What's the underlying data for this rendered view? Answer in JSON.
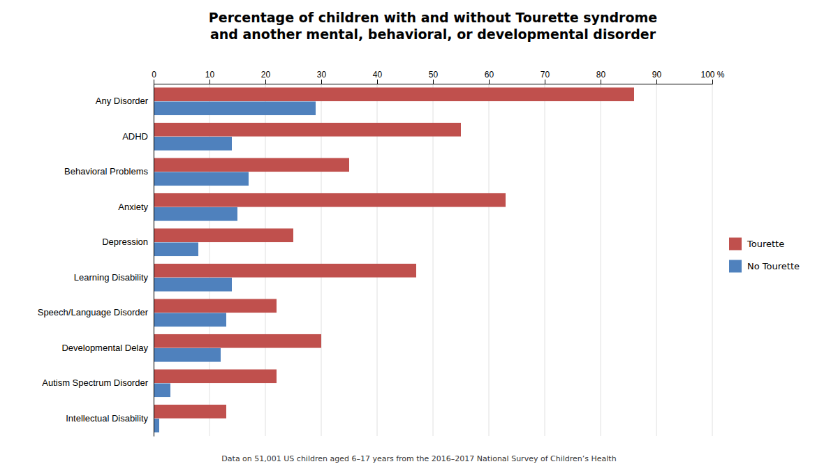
{
  "chart_data": {
    "type": "bar",
    "orientation": "horizontal",
    "title": "Percentage of children with and without Tourette syndrome\nand another mental, behavioral, or developmental disorder",
    "categories": [
      "Any Disorder",
      "ADHD",
      "Behavioral Problems",
      "Anxiety",
      "Depression",
      "Learning Disability",
      "Speech/Language Disorder",
      "Developmental Delay",
      "Autism Spectrum Disorder",
      "Intellectual Disability"
    ],
    "series": [
      {
        "name": "Tourette",
        "color": "#C0504D",
        "values": [
          86,
          55,
          35,
          63,
          25,
          47,
          22,
          30,
          22,
          13
        ]
      },
      {
        "name": "No Tourette",
        "color": "#4F81BD",
        "values": [
          29,
          14,
          17,
          15,
          8,
          14,
          13,
          12,
          3,
          1
        ]
      }
    ],
    "xlim": [
      0,
      100
    ],
    "xticks": [
      0,
      10,
      20,
      30,
      40,
      50,
      60,
      70,
      80,
      90,
      {
        "value": 100,
        "label": "100 %"
      }
    ],
    "grid": true,
    "legend": "right",
    "footnote": "Data on 51,001 US children aged 6–17 years from the 2016–2017 National Survey of Children’s Health"
  }
}
